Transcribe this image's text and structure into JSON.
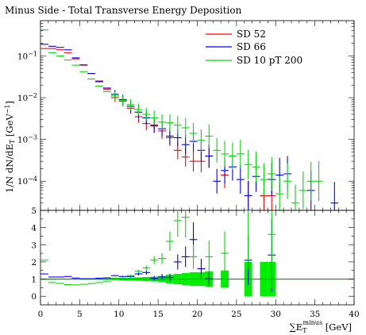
{
  "chart_data": {
    "type": "line",
    "title": "Minus Side - Total Transverse Energy Deposition",
    "xlabel_main": "∑E",
    "xlabel_sub": "T",
    "xlabel_sup": "minus",
    "xlabel_unit": "[GeV]",
    "ylabel": "1/N dN/dE",
    "ylabel_sub": "T",
    "ylabel_unit_pre": "[GeV",
    "ylabel_unit_sup": "−1",
    "ylabel_unit_post": "]",
    "xlim": [
      0,
      40
    ],
    "top_panel": {
      "yscale": "log",
      "ylim": [
        2e-05,
        0.7
      ]
    },
    "ratio_panel": {
      "ylim": [
        -0.5,
        5
      ]
    },
    "x_ticks": [
      "0",
      "5",
      "10",
      "15",
      "20",
      "25",
      "30",
      "35",
      "40"
    ],
    "top_y_ticks": [
      {
        "base": "10",
        "exp": "−1",
        "value": 0.1
      },
      {
        "base": "10",
        "exp": "−2",
        "value": 0.01
      },
      {
        "base": "10",
        "exp": "−3",
        "value": 0.001
      },
      {
        "base": "10",
        "exp": "−4",
        "value": 0.0001
      }
    ],
    "ratio_y_ticks": [
      "0",
      "1",
      "2",
      "3",
      "4",
      "5"
    ],
    "ratio_ref_line": 1,
    "series": [
      {
        "name": "SD 52",
        "color": "#ff0000",
        "points": [
          {
            "x": 0.5,
            "y": 0.15
          },
          {
            "x": 1.5,
            "y": 0.15
          },
          {
            "x": 2.5,
            "y": 0.14
          },
          {
            "x": 3.5,
            "y": 0.12
          },
          {
            "x": 4.5,
            "y": 0.085
          },
          {
            "x": 5.5,
            "y": 0.06
          },
          {
            "x": 6.5,
            "y": 0.038
          },
          {
            "x": 7.5,
            "y": 0.024
          },
          {
            "x": 8.5,
            "y": 0.016
          },
          {
            "x": 9.5,
            "y": 0.01
          },
          {
            "x": 10.5,
            "y": 0.0082
          },
          {
            "x": 11.5,
            "y": 0.0056
          },
          {
            "x": 12.5,
            "y": 0.0035
          },
          {
            "x": 13.5,
            "y": 0.0024
          },
          {
            "x": 14.5,
            "y": 0.0021
          },
          {
            "x": 15.5,
            "y": 0.0016
          },
          {
            "x": 16.5,
            "y": 0.0011
          },
          {
            "x": 17.5,
            "y": 0.00055
          },
          {
            "x": 18.5,
            "y": 0.00038
          },
          {
            "x": 19.5,
            "y": 0.0003
          },
          {
            "x": 20.5,
            "y": 0.0003
          },
          {
            "x": 21.5,
            "y": 0.0004
          },
          {
            "x": 23.5,
            "y": 0.00014
          },
          {
            "x": 26.5,
            "y": 4.5e-05
          },
          {
            "x": 28.5,
            "y": 4.5e-05
          },
          {
            "x": 29.5,
            "y": 4.5e-05
          }
        ]
      },
      {
        "name": "SD 66",
        "color": "#0000ff",
        "points": [
          {
            "x": 0.5,
            "y": 0.19
          },
          {
            "x": 1.5,
            "y": 0.17
          },
          {
            "x": 2.5,
            "y": 0.16
          },
          {
            "x": 3.5,
            "y": 0.14
          },
          {
            "x": 4.5,
            "y": 0.09
          },
          {
            "x": 5.5,
            "y": 0.061
          },
          {
            "x": 6.5,
            "y": 0.038
          },
          {
            "x": 7.5,
            "y": 0.025
          },
          {
            "x": 8.5,
            "y": 0.017
          },
          {
            "x": 9.5,
            "y": 0.012
          },
          {
            "x": 10.5,
            "y": 0.009
          },
          {
            "x": 11.5,
            "y": 0.0062
          },
          {
            "x": 12.5,
            "y": 0.0045
          },
          {
            "x": 13.5,
            "y": 0.0033
          },
          {
            "x": 14.5,
            "y": 0.0022
          },
          {
            "x": 15.5,
            "y": 0.0018
          },
          {
            "x": 16.5,
            "y": 0.0012
          },
          {
            "x": 17.5,
            "y": 0.0011
          },
          {
            "x": 18.5,
            "y": 0.00075
          },
          {
            "x": 19.5,
            "y": 0.0009
          },
          {
            "x": 20.5,
            "y": 0.00055
          },
          {
            "x": 21.5,
            "y": 0.0004
          },
          {
            "x": 22.5,
            "y": 0.0001
          },
          {
            "x": 23.5,
            "y": 0.00018
          },
          {
            "x": 24.5,
            "y": 0.00022
          },
          {
            "x": 25.5,
            "y": 0.00011
          },
          {
            "x": 26.5,
            "y": 4.5e-05
          },
          {
            "x": 27.5,
            "y": 0.00013
          },
          {
            "x": 29.5,
            "y": 0.00011
          },
          {
            "x": 30.5,
            "y": 0.00014
          },
          {
            "x": 31.5,
            "y": 0.00015
          },
          {
            "x": 34.5,
            "y": 6e-05
          },
          {
            "x": 37.5,
            "y": 3e-05
          }
        ]
      },
      {
        "name": "SD 10 pT 200",
        "color": "#00dd00",
        "points": [
          {
            "x": 0.5,
            "y": 0.42
          },
          {
            "x": 1.5,
            "y": 0.12
          },
          {
            "x": 2.5,
            "y": 0.1
          },
          {
            "x": 3.5,
            "y": 0.08
          },
          {
            "x": 4.5,
            "y": 0.06
          },
          {
            "x": 5.5,
            "y": 0.042
          },
          {
            "x": 6.5,
            "y": 0.028
          },
          {
            "x": 7.5,
            "y": 0.019
          },
          {
            "x": 8.5,
            "y": 0.014
          },
          {
            "x": 9.5,
            "y": 0.011
          },
          {
            "x": 10.5,
            "y": 0.0085
          },
          {
            "x": 11.5,
            "y": 0.0068
          },
          {
            "x": 12.5,
            "y": 0.0052
          },
          {
            "x": 13.5,
            "y": 0.004
          },
          {
            "x": 14.5,
            "y": 0.0033
          },
          {
            "x": 15.5,
            "y": 0.0026
          },
          {
            "x": 16.5,
            "y": 0.0025
          },
          {
            "x": 17.5,
            "y": 0.0022
          },
          {
            "x": 18.5,
            "y": 0.0019
          },
          {
            "x": 19.5,
            "y": 0.0014
          },
          {
            "x": 20.5,
            "y": 0.00095
          },
          {
            "x": 21.5,
            "y": 0.0012
          },
          {
            "x": 22.5,
            "y": 0.00055
          },
          {
            "x": 23.5,
            "y": 0.00045
          },
          {
            "x": 24.5,
            "y": 0.0004
          },
          {
            "x": 25.5,
            "y": 0.00045
          },
          {
            "x": 26.5,
            "y": 0.00025
          },
          {
            "x": 27.5,
            "y": 0.00022
          },
          {
            "x": 28.5,
            "y": 0.00011
          },
          {
            "x": 29.5,
            "y": 0.00015
          },
          {
            "x": 30.5,
            "y": 5e-05
          },
          {
            "x": 31.5,
            "y": 0.0001
          },
          {
            "x": 32.5,
            "y": 3e-05
          },
          {
            "x": 33.5,
            "y": 6e-05
          },
          {
            "x": 34.5,
            "y": 0.0001
          },
          {
            "x": 35.5,
            "y": 0.0001
          }
        ]
      }
    ],
    "ratio_series": [
      {
        "name": "SD 66",
        "color": "#0000ff",
        "points": [
          {
            "x": 0.5,
            "y": 1.3
          },
          {
            "x": 1.5,
            "y": 1.12
          },
          {
            "x": 2.5,
            "y": 1.12
          },
          {
            "x": 3.5,
            "y": 1.15
          },
          {
            "x": 4.5,
            "y": 1.06
          },
          {
            "x": 5.5,
            "y": 1.02
          },
          {
            "x": 6.5,
            "y": 1.02
          },
          {
            "x": 7.5,
            "y": 1.05
          },
          {
            "x": 8.5,
            "y": 1.07
          },
          {
            "x": 9.5,
            "y": 1.2
          },
          {
            "x": 10.5,
            "y": 1.15
          },
          {
            "x": 11.5,
            "y": 1.15
          },
          {
            "x": 12.5,
            "y": 1.3
          },
          {
            "x": 13.5,
            "y": 1.38
          },
          {
            "x": 14.5,
            "y": 1.05
          },
          {
            "x": 15.5,
            "y": 1.12
          },
          {
            "x": 16.5,
            "y": 1.1
          },
          {
            "x": 17.5,
            "y": 2.0
          },
          {
            "x": 18.5,
            "y": 2.3
          },
          {
            "x": 19.5,
            "y": 3.3
          },
          {
            "x": 20.5,
            "y": 1.6
          },
          {
            "x": 21.5,
            "y": 1.02
          },
          {
            "x": 26.5,
            "y": 2.1
          },
          {
            "x": 29.5,
            "y": 2.4
          }
        ]
      },
      {
        "name": "SD 10 pT 200",
        "color": "#00dd00",
        "points": [
          {
            "x": 0.5,
            "y": 2.1
          },
          {
            "x": 1.5,
            "y": 0.8
          },
          {
            "x": 2.5,
            "y": 0.75
          },
          {
            "x": 3.5,
            "y": 0.68
          },
          {
            "x": 4.5,
            "y": 0.66
          },
          {
            "x": 5.5,
            "y": 0.7
          },
          {
            "x": 6.5,
            "y": 0.74
          },
          {
            "x": 7.5,
            "y": 0.8
          },
          {
            "x": 8.5,
            "y": 0.88
          },
          {
            "x": 9.5,
            "y": 1.05
          },
          {
            "x": 10.5,
            "y": 1.05
          },
          {
            "x": 11.5,
            "y": 1.2
          },
          {
            "x": 12.5,
            "y": 1.45
          },
          {
            "x": 13.5,
            "y": 1.65
          },
          {
            "x": 14.5,
            "y": 2.1
          },
          {
            "x": 15.5,
            "y": 2.2
          },
          {
            "x": 16.5,
            "y": 3.2
          },
          {
            "x": 17.5,
            "y": 4.4
          },
          {
            "x": 18.5,
            "y": 4.6
          },
          {
            "x": 19.5,
            "y": 2.3
          },
          {
            "x": 21.5,
            "y": 2.3
          },
          {
            "x": 23.5,
            "y": 2.5
          },
          {
            "x": 26.5,
            "y": 5.0
          },
          {
            "x": 29.5,
            "y": 3.6
          }
        ]
      }
    ],
    "ratio_band": {
      "color": "#00ee00",
      "bins": [
        {
          "x0": 0,
          "x1": 1,
          "lo": 0.99,
          "hi": 1.01
        },
        {
          "x0": 1,
          "x1": 2,
          "lo": 0.99,
          "hi": 1.01
        },
        {
          "x0": 2,
          "x1": 3,
          "lo": 0.98,
          "hi": 1.02
        },
        {
          "x0": 3,
          "x1": 4,
          "lo": 0.98,
          "hi": 1.02
        },
        {
          "x0": 4,
          "x1": 5,
          "lo": 0.98,
          "hi": 1.02
        },
        {
          "x0": 5,
          "x1": 6,
          "lo": 0.97,
          "hi": 1.03
        },
        {
          "x0": 6,
          "x1": 7,
          "lo": 0.97,
          "hi": 1.03
        },
        {
          "x0": 7,
          "x1": 8,
          "lo": 0.96,
          "hi": 1.04
        },
        {
          "x0": 8,
          "x1": 9,
          "lo": 0.96,
          "hi": 1.04
        },
        {
          "x0": 9,
          "x1": 10,
          "lo": 0.95,
          "hi": 1.05
        },
        {
          "x0": 10,
          "x1": 11,
          "lo": 0.93,
          "hi": 1.07
        },
        {
          "x0": 11,
          "x1": 12,
          "lo": 0.92,
          "hi": 1.08
        },
        {
          "x0": 12,
          "x1": 13,
          "lo": 0.9,
          "hi": 1.1
        },
        {
          "x0": 13,
          "x1": 14,
          "lo": 0.88,
          "hi": 1.12
        },
        {
          "x0": 14,
          "x1": 15,
          "lo": 0.86,
          "hi": 1.14
        },
        {
          "x0": 15,
          "x1": 16,
          "lo": 0.82,
          "hi": 1.18
        },
        {
          "x0": 16,
          "x1": 17,
          "lo": 0.75,
          "hi": 1.25
        },
        {
          "x0": 17,
          "x1": 18,
          "lo": 0.7,
          "hi": 1.3
        },
        {
          "x0": 18,
          "x1": 19,
          "lo": 0.65,
          "hi": 1.35
        },
        {
          "x0": 19,
          "x1": 20,
          "lo": 0.6,
          "hi": 1.4
        },
        {
          "x0": 20,
          "x1": 21,
          "lo": 0.6,
          "hi": 1.4
        },
        {
          "x0": 21,
          "x1": 22,
          "lo": 0.55,
          "hi": 1.45
        },
        {
          "x0": 23,
          "x1": 24,
          "lo": 0.5,
          "hi": 1.5
        },
        {
          "x0": 26,
          "x1": 27,
          "lo": 0.0,
          "hi": 2.0
        },
        {
          "x0": 28,
          "x1": 29,
          "lo": 0.0,
          "hi": 2.0
        },
        {
          "x0": 29,
          "x1": 30,
          "lo": 0.0,
          "hi": 2.0
        }
      ]
    },
    "legend_position": "top-right",
    "grid": false
  }
}
